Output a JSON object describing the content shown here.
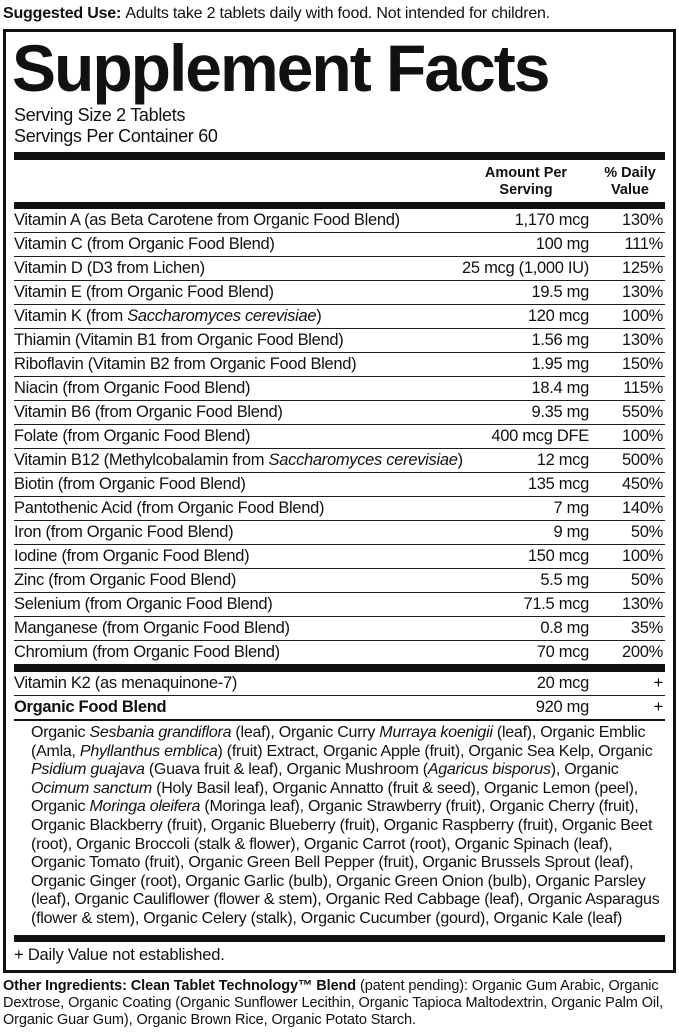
{
  "colors": {
    "ink": "#111111",
    "background": "#ffffff"
  },
  "suggested_use": {
    "segments": [
      {
        "text": "Suggested Use: ",
        "bold": true
      },
      {
        "text": "Adults take 2 tablets daily with food. Not intended for children."
      }
    ]
  },
  "panel": {
    "title": "Supplement Facts",
    "serving_size": "Serving Size 2 Tablets",
    "servings_per_container": "Servings Per Container 60",
    "columns": {
      "amount": "Amount Per Serving",
      "daily_value": "% Daily Value"
    },
    "rows": [
      {
        "name_segments": [
          {
            "text": "Vitamin A (as Beta Carotene from Organic Food Blend)"
          }
        ],
        "amount": "1,170 mcg",
        "daily_value": "130%"
      },
      {
        "name_segments": [
          {
            "text": "Vitamin C (from Organic Food Blend)"
          }
        ],
        "amount": "100 mg",
        "daily_value": "111%"
      },
      {
        "name_segments": [
          {
            "text": "Vitamin D (D3 from Lichen)"
          }
        ],
        "amount": "25 mcg (1,000 IU)",
        "daily_value": "125%"
      },
      {
        "name_segments": [
          {
            "text": "Vitamin E (from Organic Food Blend)"
          }
        ],
        "amount": "19.5 mg",
        "daily_value": "130%"
      },
      {
        "name_segments": [
          {
            "text": "Vitamin K (from "
          },
          {
            "text": "Saccharomyces cerevisiae",
            "italic": true
          },
          {
            "text": ")"
          }
        ],
        "amount": "120 mcg",
        "daily_value": "100%"
      },
      {
        "name_segments": [
          {
            "text": "Thiamin (Vitamin B1 from Organic Food Blend)"
          }
        ],
        "amount": "1.56 mg",
        "daily_value": "130%"
      },
      {
        "name_segments": [
          {
            "text": "Riboflavin (Vitamin B2 from Organic Food Blend)"
          }
        ],
        "amount": "1.95 mg",
        "daily_value": "150%"
      },
      {
        "name_segments": [
          {
            "text": "Niacin (from Organic Food Blend)"
          }
        ],
        "amount": "18.4 mg",
        "daily_value": "115%"
      },
      {
        "name_segments": [
          {
            "text": "Vitamin B6 (from Organic Food Blend)"
          }
        ],
        "amount": "9.35 mg",
        "daily_value": "550%"
      },
      {
        "name_segments": [
          {
            "text": "Folate (from Organic Food Blend)"
          }
        ],
        "amount": "400 mcg DFE",
        "daily_value": "100%"
      },
      {
        "name_segments": [
          {
            "text": "Vitamin B12 (Methylcobalamin from "
          },
          {
            "text": "Saccharomyces cerevisiae",
            "italic": true
          },
          {
            "text": ")"
          }
        ],
        "amount": "12 mcg",
        "daily_value": "500%"
      },
      {
        "name_segments": [
          {
            "text": "Biotin (from Organic Food Blend)"
          }
        ],
        "amount": "135 mcg",
        "daily_value": "450%"
      },
      {
        "name_segments": [
          {
            "text": "Pantothenic Acid (from Organic Food Blend)"
          }
        ],
        "amount": "7 mg",
        "daily_value": "140%"
      },
      {
        "name_segments": [
          {
            "text": "Iron (from Organic Food Blend)"
          }
        ],
        "amount": "9 mg",
        "daily_value": "50%"
      },
      {
        "name_segments": [
          {
            "text": "Iodine (from Organic Food Blend)"
          }
        ],
        "amount": "150 mcg",
        "daily_value": "100%"
      },
      {
        "name_segments": [
          {
            "text": "Zinc (from Organic Food Blend)"
          }
        ],
        "amount": "5.5 mg",
        "daily_value": "50%"
      },
      {
        "name_segments": [
          {
            "text": "Selenium (from Organic Food Blend)"
          }
        ],
        "amount": "71.5 mcg",
        "daily_value": "130%"
      },
      {
        "name_segments": [
          {
            "text": "Manganese (from Organic Food Blend)"
          }
        ],
        "amount": "0.8 mg",
        "daily_value": "35%"
      },
      {
        "name_segments": [
          {
            "text": "Chromium (from Organic Food Blend)"
          }
        ],
        "amount": "70 mcg",
        "daily_value": "200%"
      }
    ],
    "footnote_rows": [
      {
        "name_segments": [
          {
            "text": "Vitamin K2 (as menaquinone-7)"
          }
        ],
        "amount": "20 mcg",
        "daily_value": "+"
      },
      {
        "name_segments": [
          {
            "text": "Organic Food Blend"
          }
        ],
        "amount": "920 mg",
        "daily_value": "+",
        "bold": true
      }
    ],
    "blend_ingredients": {
      "segments": [
        {
          "text": "Organic "
        },
        {
          "text": "Sesbania grandiflora",
          "italic": true
        },
        {
          "text": " (leaf), Organic Curry "
        },
        {
          "text": "Murraya koenigii",
          "italic": true
        },
        {
          "text": " (leaf), Organic Emblic (Amla, "
        },
        {
          "text": "Phyllanthus emblica",
          "italic": true
        },
        {
          "text": ") (fruit) Extract, Organic Apple (fruit), Organic Sea Kelp, Organic "
        },
        {
          "text": "Psidium guajava",
          "italic": true
        },
        {
          "text": " (Guava fruit & leaf), Organic Mushroom ("
        },
        {
          "text": "Agaricus bisporus",
          "italic": true
        },
        {
          "text": "), Organic "
        },
        {
          "text": "Ocimum sanctum",
          "italic": true
        },
        {
          "text": " (Holy Basil leaf), Organic Annatto (fruit & seed), Organic Lemon (peel), Organic "
        },
        {
          "text": "Moringa oleifera",
          "italic": true
        },
        {
          "text": " (Moringa leaf), Organic Strawberry (fruit), Organic Cherry (fruit), Organic Blackberry (fruit), Organic Blueberry (fruit), Organic Raspberry (fruit), Organic Beet (root), Organic Broccoli (stalk & flower), Organic Carrot (root), Organic Spinach (leaf), Organic Tomato (fruit), Organic Green Bell Pepper (fruit), Organic Brussels Sprout (leaf), Organic Ginger (root), Organic Garlic (bulb), Organic Green Onion (bulb), Organic Parsley (leaf), Organic Cauliflower (flower & stem), Organic Red Cabbage (leaf), Organic Asparagus (flower & stem), Organic Celery (stalk), Organic Cucumber (gourd), Organic Kale (leaf)"
        }
      ]
    },
    "footnote": "+ Daily Value not established."
  },
  "other_ingredients": {
    "segments": [
      {
        "text": "Other Ingredients: Clean Tablet Technology™ Blend",
        "bold": true
      },
      {
        "text": " (patent pending): Organic Gum Arabic, Organic Dextrose, Organic Coating (Organic Sunflower Lecithin, Organic Tapioca Maltodextrin, Organic Palm Oil, Organic Guar Gum), Organic Brown Rice, Organic Potato Starch."
      }
    ]
  }
}
